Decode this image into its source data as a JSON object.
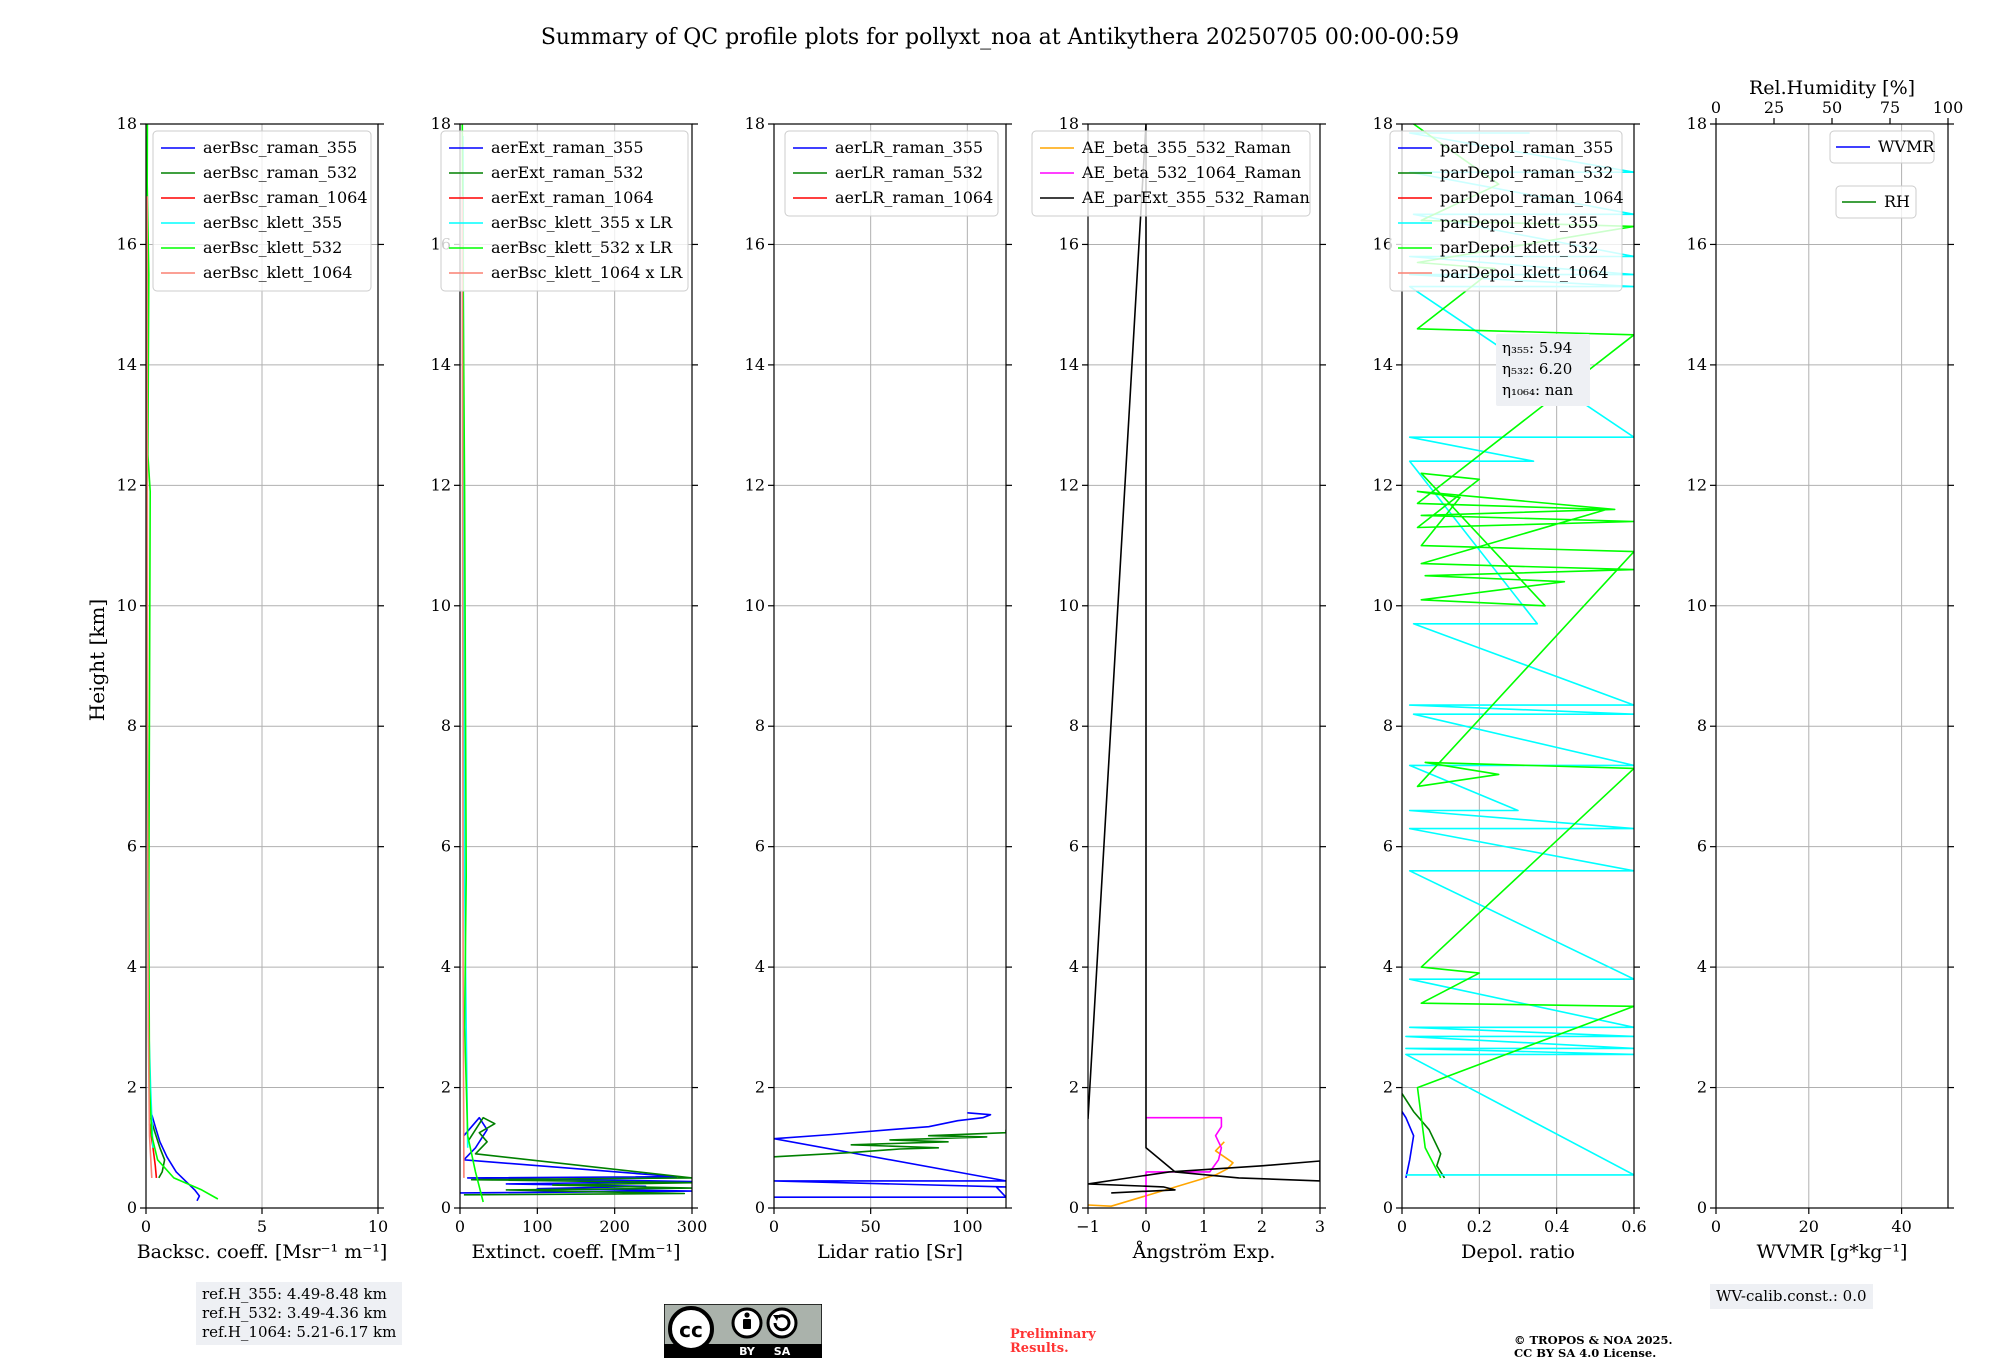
{
  "figure": {
    "title": "Summary of QC profile plots for pollyxt_noa at Antikythera 20250705 00:00-00:59",
    "ylabel": "Height [km]"
  },
  "colors": {
    "blue": "#0000ff",
    "green": "#008000",
    "red": "#ff0000",
    "cyan": "#00ffff",
    "lime": "#00ff00",
    "salmon": "#fa8072",
    "orange": "#ffa500",
    "magenta": "#ff00ff",
    "black": "#000000"
  },
  "chart_data": [
    {
      "type": "line",
      "xlabel": "Backsc. coeff. [Msr⁻¹ m⁻¹]",
      "ylabel": "Height [km]",
      "xlim": [
        0,
        10
      ],
      "ylim": [
        0,
        18
      ],
      "xticks": [
        0,
        5,
        10
      ],
      "yticks": [
        0,
        2,
        4,
        6,
        8,
        10,
        12,
        14,
        16,
        18
      ],
      "grid": true,
      "legend_position": "top-right",
      "series": [
        {
          "name": "aerBsc_raman_355",
          "color": "blue",
          "x": [
            2.2,
            2.3,
            2.1,
            1.3,
            0.9,
            0.6,
            0.4,
            0.25
          ],
          "y": [
            0.12,
            0.2,
            0.3,
            0.6,
            0.85,
            1.1,
            1.35,
            1.55
          ]
        },
        {
          "name": "aerBsc_raman_532",
          "color": "green",
          "x": [
            0.55,
            0.7,
            0.8,
            0.6,
            0.35,
            0.2
          ],
          "y": [
            0.5,
            0.6,
            0.8,
            1.0,
            1.3,
            1.5
          ]
        },
        {
          "name": "aerBsc_raman_1064",
          "color": "red",
          "x": [
            0.45,
            0.4,
            0.3,
            0.15
          ],
          "y": [
            0.5,
            0.7,
            1.0,
            1.4
          ]
        },
        {
          "name": "aerBsc_klett_355",
          "color": "cyan",
          "x": [
            0.3,
            0.2,
            0.12,
            0.08,
            0.05,
            0.04,
            0.03
          ],
          "y": [
            1.0,
            2.0,
            3.0,
            5.5,
            8.0,
            12.0,
            17.8
          ]
        },
        {
          "name": "aerBsc_klett_532",
          "color": "lime",
          "x": [
            3.1,
            2.4,
            1.2,
            0.5,
            0.25,
            0.15,
            0.12,
            0.18,
            0.08,
            0.12,
            0.05,
            0.06
          ],
          "y": [
            0.15,
            0.3,
            0.5,
            0.8,
            1.2,
            2.0,
            5.0,
            11.9,
            12.5,
            15.5,
            17.0,
            18.0
          ]
        },
        {
          "name": "aerBsc_klett_1064",
          "color": "salmon",
          "x": [
            0.25,
            0.15,
            0.1,
            0.06,
            0.05
          ],
          "y": [
            0.5,
            1.2,
            3.0,
            8.0,
            16.8
          ]
        }
      ]
    },
    {
      "type": "line",
      "xlabel": "Extinct. coeff. [Mm⁻¹]",
      "xlim": [
        0,
        300
      ],
      "ylim": [
        0,
        18
      ],
      "xticks": [
        0,
        100,
        200,
        300
      ],
      "yticks": [
        0,
        2,
        4,
        6,
        8,
        10,
        12,
        14,
        16,
        18
      ],
      "grid": true,
      "legend_position": "top-right",
      "series": [
        {
          "name": "aerExt_raman_355",
          "color": "blue",
          "x": [
            0,
            300,
            100,
            240,
            60,
            300,
            10,
            280,
            5,
            20,
            35,
            25,
            5
          ],
          "y": [
            0.25,
            0.28,
            0.32,
            0.36,
            0.4,
            0.44,
            0.5,
            0.52,
            0.8,
            1.0,
            1.3,
            1.5,
            1.2
          ]
        },
        {
          "name": "aerExt_raman_532",
          "color": "green",
          "x": [
            5,
            290,
            60,
            300,
            120,
            300,
            15,
            300,
            20,
            35,
            25,
            45,
            30,
            10
          ],
          "y": [
            0.22,
            0.24,
            0.3,
            0.33,
            0.38,
            0.42,
            0.47,
            0.5,
            0.9,
            1.1,
            1.25,
            1.4,
            1.5,
            1.1
          ]
        },
        {
          "name": "aerExt_raman_1064",
          "color": "red",
          "x": [],
          "y": []
        },
        {
          "name": "aerBsc_klett_355 x LR",
          "color": "cyan",
          "x": [
            10,
            8,
            6,
            5,
            4
          ],
          "y": [
            1.0,
            3.0,
            5.5,
            10.0,
            17.8
          ]
        },
        {
          "name": "aerBsc_klett_532 x LR",
          "color": "lime",
          "x": [
            30,
            20,
            10,
            6,
            8,
            6,
            4,
            3
          ],
          "y": [
            0.1,
            0.6,
            1.2,
            3.0,
            5.5,
            11.9,
            15.5,
            18.0
          ]
        },
        {
          "name": "aerBsc_klett_1064 x LR",
          "color": "salmon",
          "x": [
            5,
            4,
            3
          ],
          "y": [
            0.5,
            4.0,
            16.8
          ]
        }
      ]
    },
    {
      "type": "line",
      "xlabel": "Lidar ratio [Sr]",
      "xlim": [
        0,
        120
      ],
      "ylim": [
        0,
        18
      ],
      "xticks": [
        0,
        50,
        100
      ],
      "yticks": [
        0,
        2,
        4,
        6,
        8,
        10,
        12,
        14,
        16,
        18
      ],
      "grid": true,
      "legend_position": "top-right",
      "series": [
        {
          "name": "aerLR_raman_355",
          "color": "blue",
          "x": [
            0,
            120,
            115,
            120,
            0,
            120,
            0,
            30,
            60,
            80,
            95,
            108,
            112,
            100
          ],
          "y": [
            0.18,
            0.18,
            0.35,
            0.35,
            0.45,
            0.45,
            1.15,
            1.22,
            1.3,
            1.35,
            1.45,
            1.5,
            1.55,
            1.58
          ]
        },
        {
          "name": "aerLR_raman_532",
          "color": "green",
          "x": [
            0,
            40,
            65,
            85,
            40,
            90,
            60,
            110,
            80,
            120,
            120
          ],
          "y": [
            0.85,
            0.92,
            0.98,
            1.0,
            1.05,
            1.1,
            1.13,
            1.18,
            1.2,
            1.25,
            1.3
          ]
        },
        {
          "name": "aerLR_raman_1064",
          "color": "red",
          "x": [],
          "y": []
        }
      ]
    },
    {
      "type": "line",
      "xlabel": "Ångström Exp.",
      "xlim": [
        -1,
        3
      ],
      "ylim": [
        0,
        18
      ],
      "xticks": [
        -1,
        0,
        1,
        2,
        3
      ],
      "yticks": [
        0,
        2,
        4,
        6,
        8,
        10,
        12,
        14,
        16,
        18
      ],
      "grid": true,
      "legend_position": "top",
      "series": [
        {
          "name": "AE_beta_355_532_Raman",
          "color": "orange",
          "x": [
            -1,
            -0.6,
            1.2,
            1.4,
            1.5,
            1.35,
            1.2,
            1.35
          ],
          "y": [
            0.05,
            0.03,
            0.55,
            0.65,
            0.75,
            0.85,
            0.95,
            1.1
          ]
        },
        {
          "name": "AE_beta_532_1064_Raman",
          "color": "magenta",
          "x": [
            0,
            0,
            1.1,
            1.25,
            1.3,
            1.2,
            1.3,
            1.3,
            0
          ],
          "y": [
            0,
            0.6,
            0.6,
            0.8,
            1.0,
            1.2,
            1.35,
            1.5,
            1.5
          ]
        },
        {
          "name": "AE_parExt_355_532_Raman",
          "color": "black",
          "x": [
            -0.6,
            0.5,
            0.3,
            -1,
            0.4,
            2.0,
            3.0,
            3.0,
            1.6,
            0.5,
            0,
            0,
            -1
          ],
          "y": [
            0.25,
            0.3,
            0.35,
            0.4,
            0.6,
            0.7,
            0.78,
            0.45,
            0.5,
            0.6,
            1.0,
            18.0,
            1.48
          ]
        }
      ]
    },
    {
      "type": "line",
      "xlabel": "Depol. ratio",
      "xlim": [
        0,
        0.6
      ],
      "ylim": [
        0,
        18
      ],
      "xticks": [
        0,
        0.2,
        0.4,
        0.6
      ],
      "yticks": [
        0,
        2,
        4,
        6,
        8,
        10,
        12,
        14,
        16,
        18
      ],
      "grid": true,
      "legend_position": "top-left",
      "annotation": [
        "η₃₅₅: 5.94",
        "η₅₃₂: 6.20",
        "η₁₀₆₄: nan"
      ],
      "series": [
        {
          "name": "parDepol_raman_355",
          "color": "blue",
          "x": [
            0.01,
            0.02,
            0.03,
            0.01,
            0.0
          ],
          "y": [
            0.5,
            0.8,
            1.2,
            1.5,
            1.6
          ]
        },
        {
          "name": "parDepol_raman_532",
          "color": "green",
          "x": [
            0.11,
            0.09,
            0.1,
            0.07,
            0.03,
            0.0
          ],
          "y": [
            0.5,
            0.7,
            0.9,
            1.3,
            1.6,
            1.9
          ]
        },
        {
          "name": "parDepol_raman_1064",
          "color": "red",
          "x": [],
          "y": []
        },
        {
          "name": "parDepol_klett_355",
          "color": "cyan",
          "x": [
            0.01,
            0.6,
            0.01,
            0.6,
            0.01,
            0.6,
            0.01,
            0.6,
            0.02,
            0.6,
            0.02,
            0.6,
            0.02,
            0.6,
            0.02,
            0.6,
            0.02,
            0.3,
            0.02,
            0.6,
            0.03,
            0.6,
            0.02,
            0.6,
            0.03,
            0.35,
            0.02,
            0.34,
            0.02,
            0.6,
            0.02,
            0.6,
            0.02,
            0.6,
            0.02,
            0.6,
            0.03,
            0.6,
            0.02,
            0.6,
            0.02,
            0.33
          ],
          "y": [
            0.55,
            0.55,
            2.55,
            2.55,
            2.65,
            2.65,
            2.85,
            2.85,
            3.0,
            3.0,
            3.8,
            3.8,
            5.6,
            5.6,
            6.3,
            6.3,
            6.6,
            6.6,
            7.35,
            7.35,
            8.2,
            8.2,
            8.35,
            8.35,
            9.7,
            9.7,
            12.4,
            12.4,
            12.8,
            12.8,
            15.3,
            15.3,
            15.5,
            15.5,
            15.8,
            15.8,
            16.5,
            16.5,
            17.2,
            17.2,
            17.85,
            17.85
          ]
        },
        {
          "name": "parDepol_klett_532",
          "color": "lime",
          "x": [
            0.1,
            0.06,
            0.04,
            0.6,
            0.05,
            0.2,
            0.05,
            0.6,
            0.06,
            0.25,
            0.04,
            0.6,
            0.05,
            0.15,
            0.04,
            0.55,
            0.05,
            0.6,
            0.04,
            0.2,
            0.05,
            0.37,
            0.05,
            0.42,
            0.06,
            0.6,
            0.05,
            0.53,
            0.04,
            0.6,
            0.04,
            0.24,
            0.04,
            0.6,
            0.05,
            0.25,
            0.03
          ],
          "y": [
            0.5,
            1.0,
            2.0,
            3.35,
            3.4,
            3.9,
            4.0,
            7.3,
            7.4,
            7.2,
            7.0,
            10.9,
            11.0,
            11.8,
            11.9,
            11.6,
            11.5,
            11.4,
            11.3,
            12.1,
            12.2,
            10.0,
            10.1,
            10.4,
            10.5,
            10.6,
            10.7,
            11.6,
            11.7,
            14.5,
            14.6,
            15.6,
            15.7,
            16.3,
            16.4,
            17.0,
            18.0
          ]
        },
        {
          "name": "parDepol_klett_1064",
          "color": "salmon",
          "x": [],
          "y": []
        }
      ]
    },
    {
      "type": "line",
      "xlabel": "WVMR [g*kg⁻¹]",
      "top_axis_label": "Rel.Humidity [%]",
      "xlim": [
        0,
        50
      ],
      "ylim": [
        0,
        18
      ],
      "xticks": [
        0,
        20,
        40
      ],
      "top_xticks": [
        0,
        25,
        50,
        75,
        100
      ],
      "yticks": [
        0,
        2,
        4,
        6,
        8,
        10,
        12,
        14,
        16,
        18
      ],
      "grid": true,
      "legend_position": "top-right",
      "series": [
        {
          "name": "WVMR",
          "color": "blue",
          "x": [],
          "y": []
        },
        {
          "name": "RH",
          "color": "green",
          "x": [],
          "y": []
        }
      ]
    }
  ],
  "footer": {
    "refh_355": "ref.H_355: 4.49-8.48 km",
    "refh_532": "ref.H_532: 3.49-4.36 km",
    "refh_1064": "ref.H_1064: 5.21-6.17 km",
    "preliminary_1": "Preliminary",
    "preliminary_2": "Results.",
    "copyright_1": "© TROPOS & NOA 2025.",
    "copyright_2": "CC BY SA 4.0 License.",
    "wv_calib": "WV-calib.const.: 0.0",
    "cc_label": "cc",
    "by_label": "BY",
    "sa_label": "SA"
  }
}
